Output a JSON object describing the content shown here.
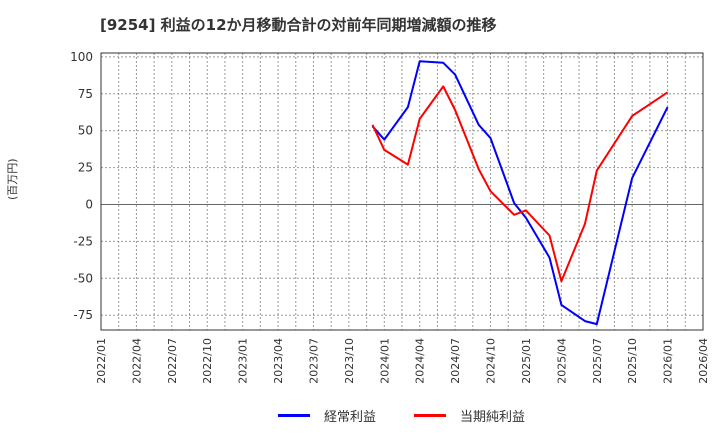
{
  "title": "[9254]  利益の12か月移動合計の対前年同期増減額の推移",
  "y_axis_label": "(百万円)",
  "legend": [
    {
      "label": "経常利益",
      "color": "#0000ff"
    },
    {
      "label": "当期純利益",
      "color": "#ff0000"
    }
  ],
  "chart_data": {
    "type": "line",
    "title": "[9254]  利益の12か月移動合計の対前年同期増減額の推移",
    "xlabel": "",
    "ylabel": "(百万円)",
    "ylim": [
      -85,
      100
    ],
    "yticks": [
      100,
      75,
      50,
      25,
      0,
      -25,
      -50,
      -75
    ],
    "xticks": [
      "2022/01",
      "2022/04",
      "2022/07",
      "2022/10",
      "2023/01",
      "2023/04",
      "2023/07",
      "2023/10",
      "2024/01",
      "2024/04",
      "2024/07",
      "2024/10",
      "2025/01",
      "2025/04",
      "2025/07",
      "2025/10",
      "2026/01",
      "2026/04"
    ],
    "grid": true,
    "legend_position": "bottom",
    "x": [
      "2023/12",
      "2024/01",
      "2024/03",
      "2024/04",
      "2024/06",
      "2024/07",
      "2024/09",
      "2024/10",
      "2024/12",
      "2025/01",
      "2025/03",
      "2025/04",
      "2025/06",
      "2025/07",
      "2025/10",
      "2026/01"
    ],
    "series": [
      {
        "name": "経常利益",
        "color": "#0000ff",
        "values": [
          53,
          44,
          66,
          97,
          96,
          88,
          54,
          45,
          1,
          -9,
          -36,
          -68,
          -79,
          -81,
          18,
          66
        ]
      },
      {
        "name": "当期純利益",
        "color": "#ff0000",
        "values": [
          54,
          37,
          27,
          58,
          80,
          64,
          24,
          9,
          -7,
          -4,
          -21,
          -52,
          -13,
          23,
          60,
          76
        ]
      }
    ]
  }
}
